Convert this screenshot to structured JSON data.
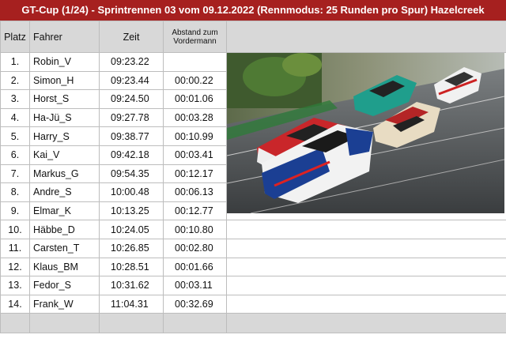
{
  "title": "GT-Cup (1/24) -  Sprintrennen 03 vom 09.12.2022 (Rennmodus: 25 Runden pro Spur) Hazelcreek",
  "headers": {
    "platz": "Platz",
    "fahrer": "Fahrer",
    "zeit": "Zeit",
    "abstand": "Abstand zum Vordermann"
  },
  "rows": [
    {
      "platz": "1.",
      "fahrer": "Robin_V",
      "zeit": "09:23.22",
      "abstand": ""
    },
    {
      "platz": "2.",
      "fahrer": "Simon_H",
      "zeit": "09:23.44",
      "abstand": "00:00.22"
    },
    {
      "platz": "3.",
      "fahrer": "Horst_S",
      "zeit": "09:24.50",
      "abstand": "00:01.06"
    },
    {
      "platz": "4.",
      "fahrer": "Ha-Jü_S",
      "zeit": "09:27.78",
      "abstand": "00:03.28"
    },
    {
      "platz": "5.",
      "fahrer": "Harry_S",
      "zeit": "09:38.77",
      "abstand": "00:10.99"
    },
    {
      "platz": "6.",
      "fahrer": "Kai_V",
      "zeit": "09:42.18",
      "abstand": "00:03.41"
    },
    {
      "platz": "7.",
      "fahrer": "Markus_G",
      "zeit": "09:54.35",
      "abstand": "00:12.17"
    },
    {
      "platz": "8.",
      "fahrer": "Andre_S",
      "zeit": "10:00.48",
      "abstand": "00:06.13"
    },
    {
      "platz": "9.",
      "fahrer": "Elmar_K",
      "zeit": "10:13.25",
      "abstand": "00:12.77"
    },
    {
      "platz": "10.",
      "fahrer": "Häbbe_D",
      "zeit": "10:24.05",
      "abstand": "00:10.80"
    },
    {
      "platz": "11.",
      "fahrer": "Carsten_T",
      "zeit": "10:26.85",
      "abstand": "00:02.80"
    },
    {
      "platz": "12.",
      "fahrer": "Klaus_BM",
      "zeit": "10:28.51",
      "abstand": "00:01.66"
    },
    {
      "platz": "13.",
      "fahrer": "Fedor_S",
      "zeit": "10:31.62",
      "abstand": "00:03.11"
    },
    {
      "platz": "14.",
      "fahrer": "Frank_W",
      "zeit": "11:04.31",
      "abstand": "00:32.69"
    }
  ],
  "colors": {
    "title_bg": "#a6201f",
    "header_bg": "#d8d8d8",
    "grid": "#bdbdbd"
  }
}
